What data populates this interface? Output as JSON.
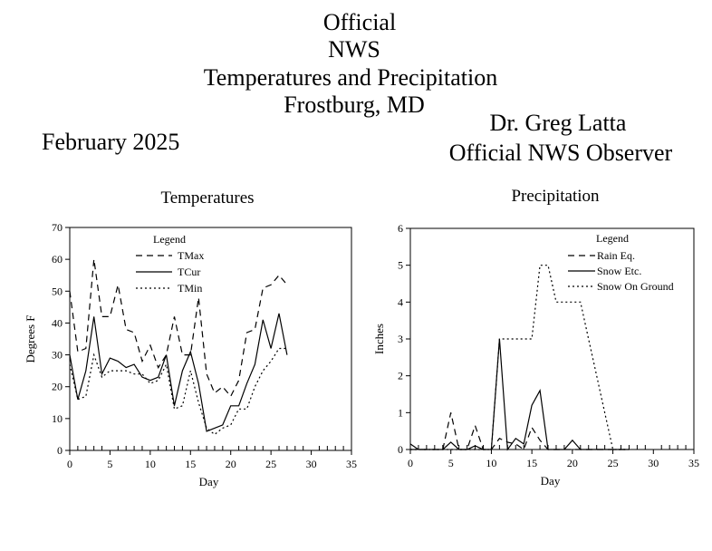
{
  "header": {
    "title_lines": [
      "Official",
      "NWS",
      "Temperatures and Precipitation",
      "Frostburg, MD"
    ],
    "month": "February 2025",
    "observer_name": "Dr. Greg Latta",
    "observer_title": "Official NWS Observer"
  },
  "chart_data": [
    {
      "type": "line",
      "title": "Temperatures",
      "xlabel": "Day",
      "ylabel": "Degrees F",
      "xlim": [
        0,
        35
      ],
      "ylim": [
        0,
        70
      ],
      "xticks": [
        0,
        5,
        10,
        15,
        20,
        25,
        30,
        35
      ],
      "yticks": [
        0,
        10,
        20,
        30,
        40,
        50,
        60,
        70
      ],
      "legend_title": "Legend",
      "legend_position": "top-left",
      "x": [
        0,
        1,
        2,
        3,
        4,
        5,
        6,
        7,
        8,
        9,
        10,
        11,
        12,
        13,
        14,
        15,
        16,
        17,
        18,
        19,
        20,
        21,
        22,
        23,
        24,
        25,
        26,
        27
      ],
      "series": [
        {
          "name": "TMax",
          "style": "dashed",
          "values": [
            50,
            31,
            32,
            60,
            42,
            42,
            52,
            38,
            37,
            28,
            33,
            26,
            30,
            42,
            30,
            30,
            48,
            24,
            18,
            20,
            17,
            22,
            37,
            38,
            51,
            52,
            55,
            52
          ]
        },
        {
          "name": "TCur",
          "style": "solid",
          "values": [
            30,
            16,
            25,
            42,
            24,
            29,
            28,
            26,
            27,
            23,
            22,
            23,
            30,
            14,
            25,
            31,
            21,
            6,
            7,
            8,
            14,
            14,
            21,
            27,
            41,
            32,
            43,
            30
          ]
        },
        {
          "name": "TMin",
          "style": "dotted",
          "values": [
            27,
            16,
            17,
            30,
            23,
            25,
            25,
            25,
            24,
            24,
            21,
            22,
            27,
            13,
            14,
            25,
            15,
            7,
            5,
            7,
            8,
            13,
            13,
            20,
            25,
            28,
            32,
            32
          ]
        }
      ]
    },
    {
      "type": "line",
      "title": "Precipitation",
      "xlabel": "Day",
      "ylabel": "Inches",
      "xlim": [
        0,
        35
      ],
      "ylim": [
        0,
        6
      ],
      "xticks": [
        0,
        5,
        10,
        15,
        20,
        25,
        30,
        35
      ],
      "yticks": [
        0,
        1,
        2,
        3,
        4,
        5,
        6
      ],
      "legend_title": "Legend",
      "legend_position": "top-right",
      "x": [
        0,
        1,
        2,
        3,
        4,
        5,
        6,
        7,
        8,
        9,
        10,
        11,
        12,
        13,
        14,
        15,
        16,
        17,
        18,
        19,
        20,
        21,
        22,
        23,
        24,
        25,
        26,
        27
      ],
      "series": [
        {
          "name": "Rain Eq.",
          "style": "dashed",
          "values": [
            0,
            0,
            0,
            0,
            0,
            1,
            0,
            0,
            0.65,
            0,
            0,
            0.3,
            0.2,
            0.15,
            0,
            0.6,
            0.25,
            0,
            0,
            0,
            0,
            0,
            0,
            0,
            0,
            0,
            0,
            0
          ]
        },
        {
          "name": "Snow Etc.",
          "style": "solid",
          "values": [
            0.15,
            0,
            0,
            0,
            0,
            0.2,
            0,
            0,
            0.1,
            0,
            0,
            3,
            0,
            0.3,
            0.15,
            1.2,
            1.6,
            0,
            0,
            0,
            0.25,
            0,
            0,
            0,
            0,
            0,
            0,
            0
          ]
        },
        {
          "name": "Snow On Ground",
          "style": "dotted",
          "values": [
            0,
            0,
            0,
            0,
            0,
            0,
            0,
            0,
            0,
            0,
            0,
            3,
            3,
            3,
            3,
            3,
            5,
            5,
            4,
            4,
            4,
            4,
            3,
            2,
            1,
            0,
            0,
            0
          ]
        }
      ]
    }
  ]
}
